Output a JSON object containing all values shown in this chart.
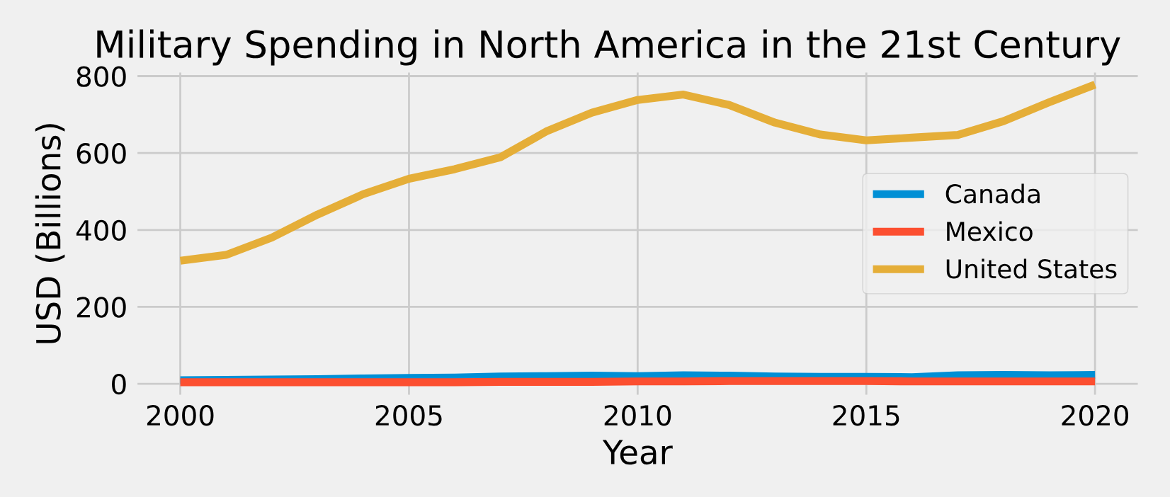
{
  "chart_data": {
    "type": "line",
    "title": "Military Spending in North America in the 21st Century",
    "xlabel": "Year",
    "ylabel": "USD (Billions)",
    "x": [
      2000,
      2001,
      2002,
      2003,
      2004,
      2005,
      2006,
      2007,
      2008,
      2009,
      2010,
      2011,
      2012,
      2013,
      2014,
      2015,
      2016,
      2017,
      2018,
      2019,
      2020
    ],
    "series": [
      {
        "name": "Canada",
        "color": "#008fd5",
        "values": [
          9,
          10,
          11,
          12,
          14,
          15,
          16,
          19,
          20,
          21,
          20,
          22,
          21,
          19,
          18,
          18,
          17,
          22,
          23,
          22,
          23
        ]
      },
      {
        "name": "Mexico",
        "color": "#fc4f30",
        "values": [
          4,
          4,
          4,
          4,
          4,
          4,
          4,
          5,
          5,
          5,
          6,
          6,
          7,
          7,
          7,
          7,
          6,
          6,
          6,
          6,
          6
        ]
      },
      {
        "name": "United States",
        "color": "#e5ae38",
        "values": [
          320,
          335,
          380,
          440,
          493,
          533,
          558,
          589,
          656,
          705,
          738,
          752,
          725,
          679,
          648,
          633,
          640,
          647,
          683,
          732,
          778
        ]
      }
    ],
    "xlim": [
      1999,
      2021
    ],
    "xticks": [
      2000,
      2005,
      2010,
      2015,
      2020
    ],
    "ylim": [
      -36,
      817
    ],
    "yticks": [
      0,
      200,
      400,
      600,
      800
    ],
    "grid": true,
    "legend": "right"
  }
}
